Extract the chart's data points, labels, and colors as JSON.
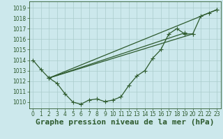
{
  "title": "Graphe pression niveau de la mer (hPa)",
  "background_color": "#cce8ec",
  "grid_color": "#aacccc",
  "line_color": "#2d5a2d",
  "xlim": [
    -0.5,
    23.5
  ],
  "ylim": [
    1009.4,
    1019.6
  ],
  "yticks": [
    1010,
    1011,
    1012,
    1013,
    1014,
    1015,
    1016,
    1017,
    1018,
    1019
  ],
  "xticks": [
    0,
    1,
    2,
    3,
    4,
    5,
    6,
    7,
    8,
    9,
    10,
    11,
    12,
    13,
    14,
    15,
    16,
    17,
    18,
    19,
    20,
    21,
    22,
    23
  ],
  "detailed_series": [
    1014.0,
    1013.1,
    1012.3,
    1011.8,
    1010.8,
    1010.0,
    1009.8,
    1010.2,
    1010.3,
    1010.05,
    1010.2,
    1010.5,
    1011.6,
    1012.5,
    1013.0,
    1014.2,
    1015.0,
    1016.5,
    1017.0,
    1016.5,
    1016.5,
    1018.2,
    1018.5,
    1018.8
  ],
  "straight_lines": [
    {
      "x0": 2,
      "y0": 1012.3,
      "x1": 23,
      "y1": 1018.8
    },
    {
      "x0": 2,
      "y0": 1012.3,
      "x1": 19,
      "y1": 1016.6
    },
    {
      "x0": 2,
      "y0": 1012.3,
      "x1": 20,
      "y1": 1016.5
    }
  ],
  "title_fontsize": 8,
  "tick_fontsize": 5.5,
  "marker_size": 4,
  "linewidth": 0.9
}
